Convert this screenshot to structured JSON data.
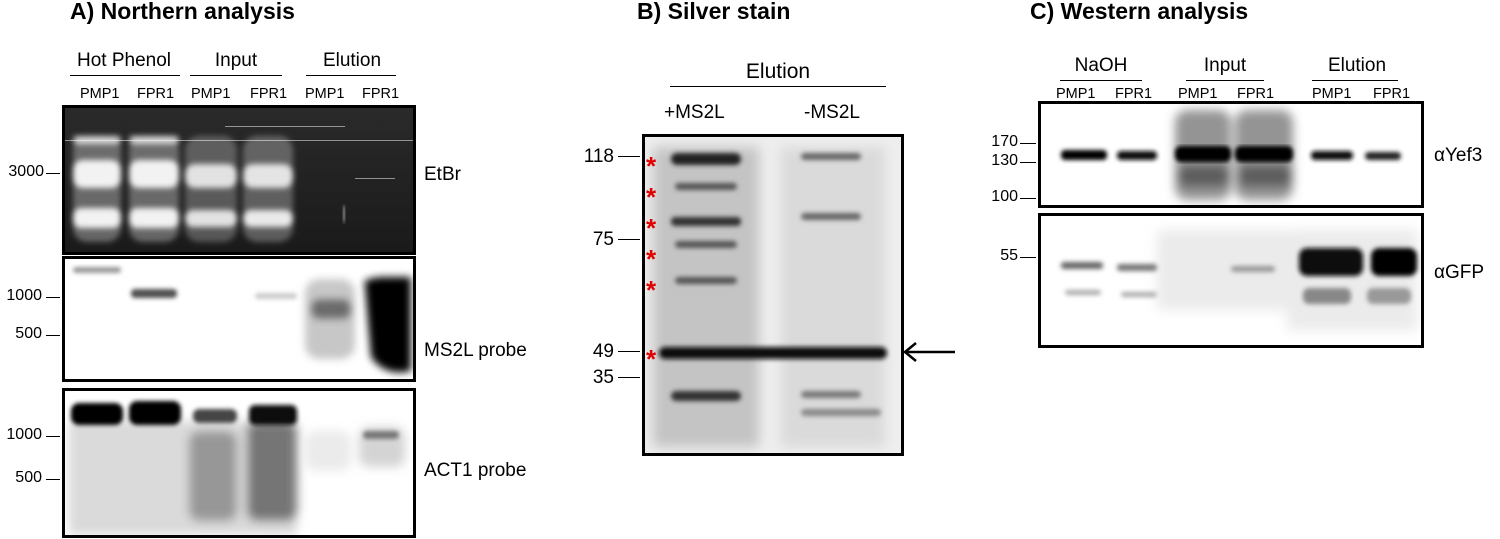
{
  "panelA": {
    "title": "A) Northern analysis",
    "groups": [
      "Hot Phenol",
      "Input",
      "Elution"
    ],
    "lanes": [
      "PMP1",
      "FPR1",
      "PMP1",
      "FPR1",
      "PMP1",
      "FPR1"
    ],
    "blots": [
      {
        "label": "EtBr",
        "markers": [
          "3000"
        ]
      },
      {
        "label": "MS2L probe",
        "markers": [
          "1000",
          "500"
        ]
      },
      {
        "label": "ACT1 probe",
        "markers": [
          "1000",
          "500"
        ]
      }
    ]
  },
  "panelB": {
    "title": "B) Silver stain",
    "group": "Elution",
    "lanes": [
      "+MS2L",
      "-MS2L"
    ],
    "markers": [
      "118",
      "75",
      "49",
      "35"
    ],
    "star": "*",
    "arrow": "←"
  },
  "panelC": {
    "title": "C) Western analysis",
    "groups": [
      "NaOH",
      "Input",
      "Elution"
    ],
    "lanes": [
      "PMP1",
      "FPR1",
      "PMP1",
      "FPR1",
      "PMP1",
      "FPR1"
    ],
    "blots": [
      {
        "label": "αYef3",
        "markers": [
          "170",
          "130",
          "100"
        ]
      },
      {
        "label": "αGFP",
        "markers": [
          "55"
        ]
      }
    ]
  }
}
